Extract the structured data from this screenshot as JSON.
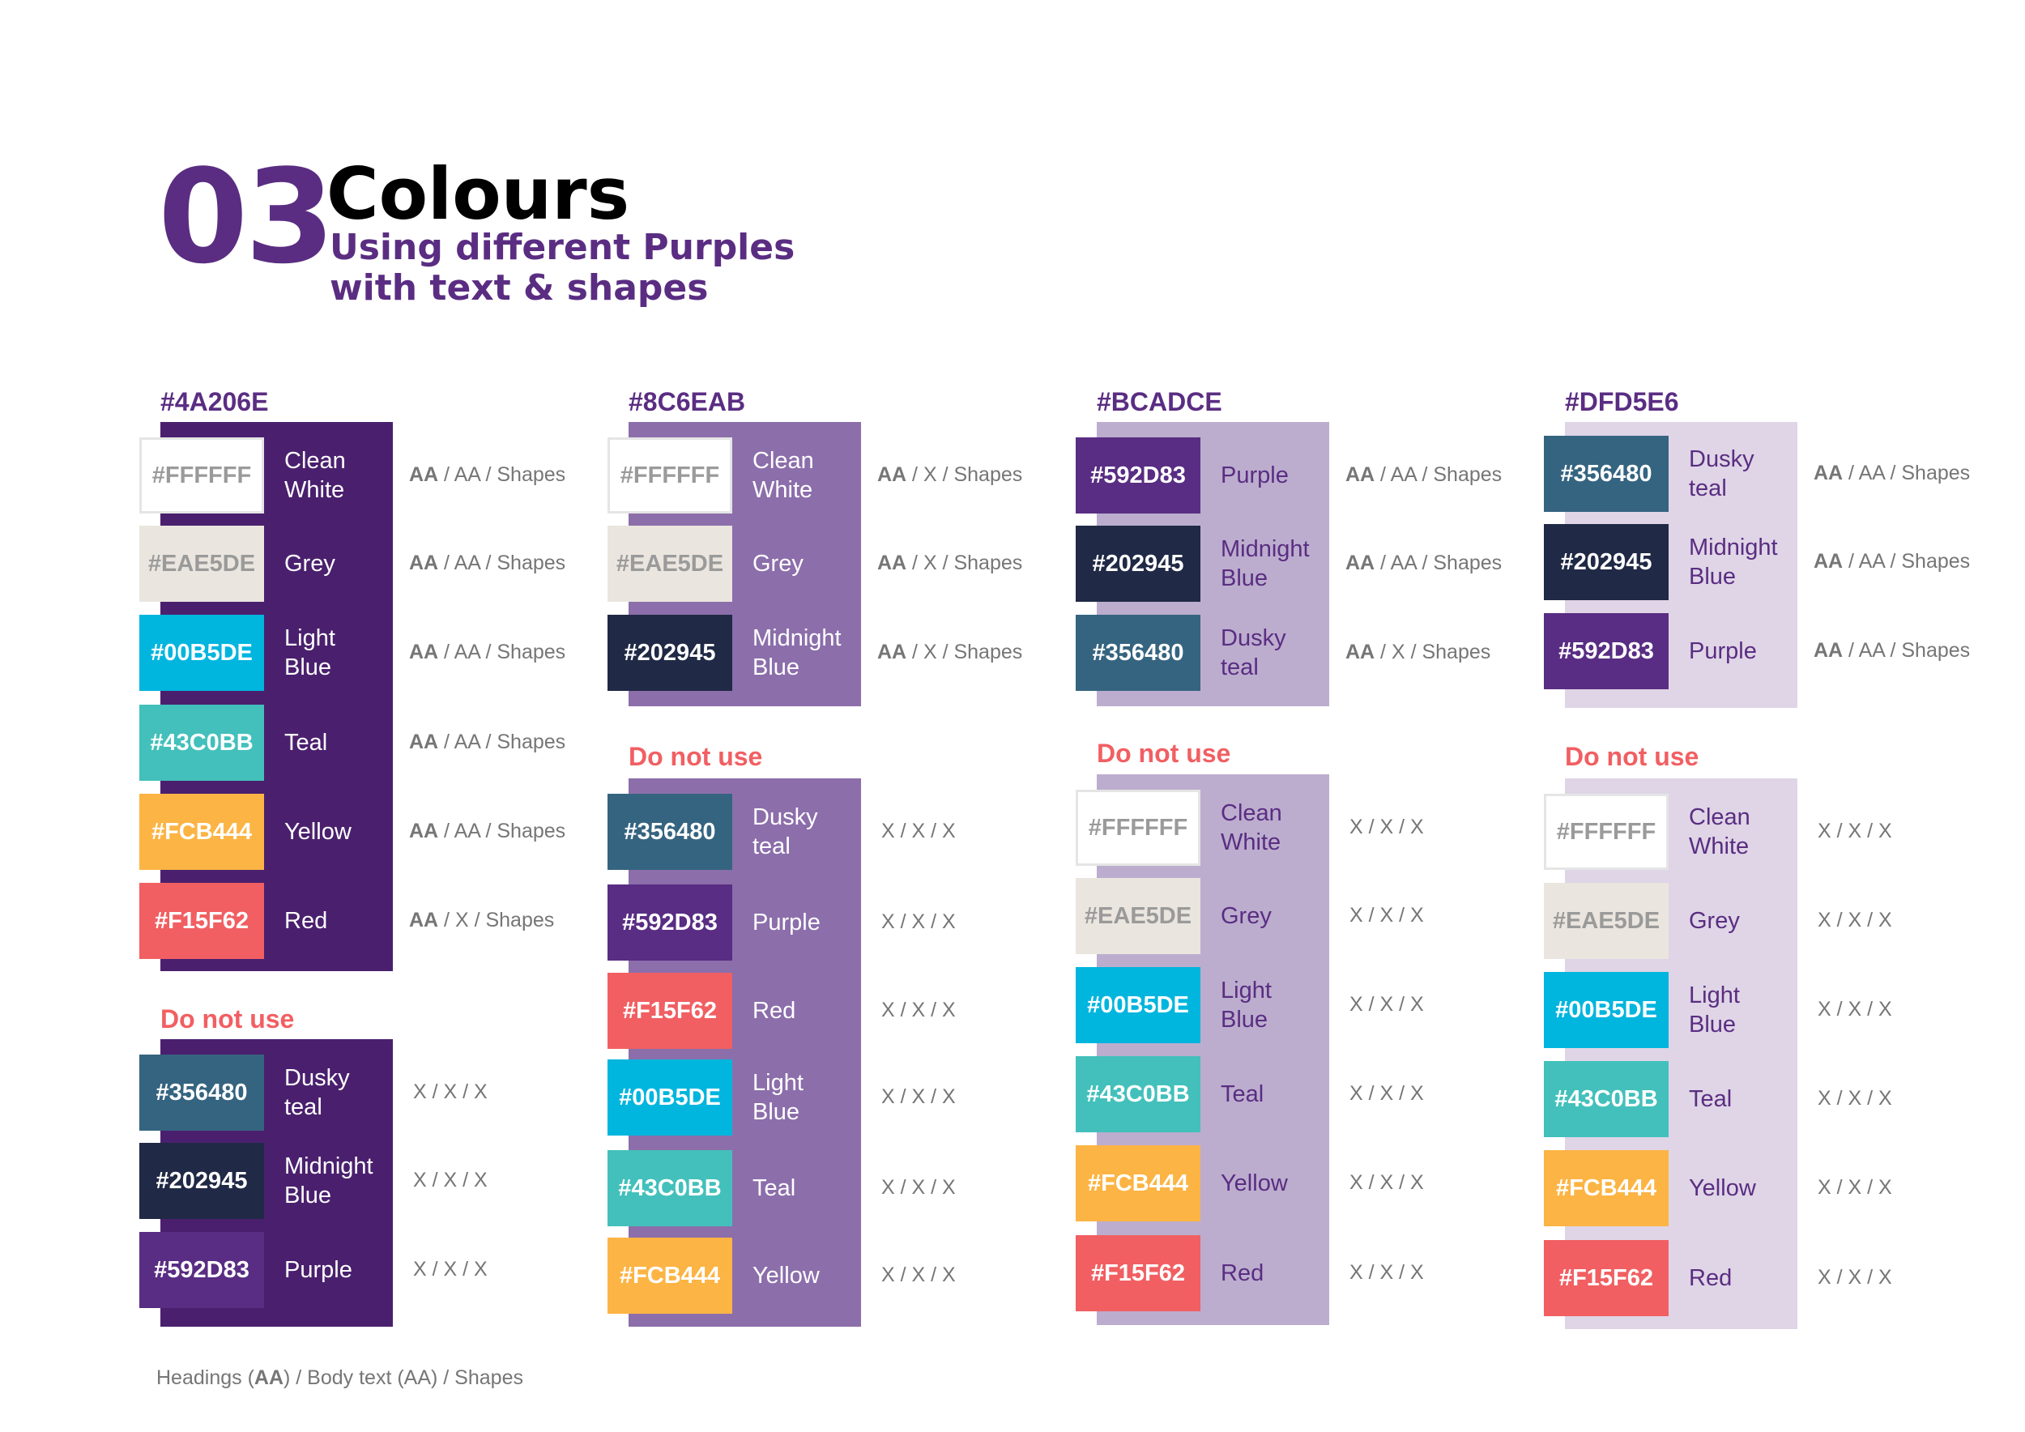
{
  "header": {
    "number": "03",
    "title": "Colours",
    "subtitle_line1": "Using different Purples",
    "subtitle_line2": "with text & shapes"
  },
  "colors": {
    "purple_4a": "#4A206E",
    "purple_8c": "#8C6EAB",
    "purple_bc": "#BCADCE",
    "purple_df": "#DFD5E6",
    "dnu_red": "#F15F62",
    "label_purple": "#592D83"
  },
  "columns": [
    {
      "title": "#4A206E",
      "bg": "#4A206E",
      "name_style": "light",
      "use": [
        {
          "hex": "#FFFFFF",
          "color": "#FFFFFF",
          "name": [
            "Clean",
            "White"
          ],
          "rating": [
            "AA",
            " / AA / Shapes"
          ]
        },
        {
          "hex": "#EAE5DE",
          "color": "#EAE5DE",
          "name": [
            "Grey"
          ],
          "rating": [
            "AA",
            " / AA / Shapes"
          ]
        },
        {
          "hex": "#00B5DE",
          "color": "#00B5DE",
          "name": [
            "Light",
            "Blue"
          ],
          "rating": [
            "AA",
            " / AA / Shapes"
          ]
        },
        {
          "hex": "#43C0BB",
          "color": "#43C0BB",
          "name": [
            "Teal"
          ],
          "rating": [
            "AA",
            " / AA / Shapes"
          ]
        },
        {
          "hex": "#FCB444",
          "color": "#FCB444",
          "name": [
            "Yellow"
          ],
          "rating": [
            "AA",
            " / AA / Shapes"
          ]
        },
        {
          "hex": "#F15F62",
          "color": "#F15F62",
          "name": [
            "Red"
          ],
          "rating": [
            "AA",
            " / X / Shapes"
          ]
        }
      ],
      "dnu_label": "Do not use",
      "dnu": [
        {
          "hex": "#356480",
          "color": "#356480",
          "name": [
            "Dusky",
            "teal"
          ],
          "rating": [
            "",
            "X / X / X"
          ]
        },
        {
          "hex": "#202945",
          "color": "#202945",
          "name": [
            "Midnight",
            "Blue"
          ],
          "rating": [
            "",
            "X / X / X"
          ]
        },
        {
          "hex": "#592D83",
          "color": "#592D83",
          "name": [
            "Purple"
          ],
          "rating": [
            "",
            "X / X / X"
          ]
        }
      ]
    },
    {
      "title": "#8C6EAB",
      "bg": "#8C6EAB",
      "name_style": "light",
      "use": [
        {
          "hex": "#FFFFFF",
          "color": "#FFFFFF",
          "name": [
            "Clean",
            "White"
          ],
          "rating": [
            "AA",
            " / X / Shapes"
          ]
        },
        {
          "hex": "#EAE5DE",
          "color": "#EAE5DE",
          "name": [
            "Grey"
          ],
          "rating": [
            "AA",
            " / X / Shapes"
          ]
        },
        {
          "hex": "#202945",
          "color": "#202945",
          "name": [
            "Midnight",
            "Blue"
          ],
          "rating": [
            "AA",
            " / X / Shapes"
          ]
        }
      ],
      "dnu_label": "Do not use",
      "dnu": [
        {
          "hex": "#356480",
          "color": "#356480",
          "name": [
            "Dusky",
            "teal"
          ],
          "rating": [
            "",
            "X / X / X"
          ]
        },
        {
          "hex": "#592D83",
          "color": "#592D83",
          "name": [
            "Purple"
          ],
          "rating": [
            "",
            "X / X / X"
          ]
        },
        {
          "hex": "#F15F62",
          "color": "#F15F62",
          "name": [
            "Red"
          ],
          "rating": [
            "",
            "X / X / X"
          ]
        },
        {
          "hex": "#00B5DE",
          "color": "#00B5DE",
          "name": [
            "Light",
            "Blue"
          ],
          "rating": [
            "",
            "X / X / X"
          ]
        },
        {
          "hex": "#43C0BB",
          "color": "#43C0BB",
          "name": [
            "Teal"
          ],
          "rating": [
            "",
            "X / X / X"
          ]
        },
        {
          "hex": "#FCB444",
          "color": "#FCB444",
          "name": [
            "Yellow"
          ],
          "rating": [
            "",
            "X / X / X"
          ]
        }
      ]
    },
    {
      "title": "#BCADCE",
      "bg": "#BCADCE",
      "name_style": "dark",
      "use": [
        {
          "hex": "#592D83",
          "color": "#592D83",
          "name": [
            "Purple"
          ],
          "rating": [
            "AA",
            " / AA / Shapes"
          ]
        },
        {
          "hex": "#202945",
          "color": "#202945",
          "name": [
            "Midnight",
            "Blue"
          ],
          "rating": [
            "AA",
            " / AA / Shapes"
          ]
        },
        {
          "hex": "#356480",
          "color": "#356480",
          "name": [
            "Dusky",
            "teal"
          ],
          "rating": [
            "AA",
            " / X / Shapes"
          ]
        }
      ],
      "dnu_label": "Do not use",
      "dnu": [
        {
          "hex": "#FFFFFF",
          "color": "#FFFFFF",
          "name": [
            "Clean",
            "White"
          ],
          "rating": [
            "",
            "X / X / X"
          ]
        },
        {
          "hex": "#EAE5DE",
          "color": "#EAE5DE",
          "name": [
            "Grey"
          ],
          "rating": [
            "",
            "X / X / X"
          ]
        },
        {
          "hex": "#00B5DE",
          "color": "#00B5DE",
          "name": [
            "Light",
            "Blue"
          ],
          "rating": [
            "",
            "X / X / X"
          ]
        },
        {
          "hex": "#43C0BB",
          "color": "#43C0BB",
          "name": [
            "Teal"
          ],
          "rating": [
            "",
            "X / X / X"
          ]
        },
        {
          "hex": "#FCB444",
          "color": "#FCB444",
          "name": [
            "Yellow"
          ],
          "rating": [
            "",
            "X / X / X"
          ]
        },
        {
          "hex": "#F15F62",
          "color": "#F15F62",
          "name": [
            "Red"
          ],
          "rating": [
            "",
            "X / X / X"
          ]
        }
      ]
    },
    {
      "title": "#DFD5E6",
      "bg": "#DFD5E6",
      "name_style": "dark",
      "use": [
        {
          "hex": "#356480",
          "color": "#356480",
          "name": [
            "Dusky",
            "teal"
          ],
          "rating": [
            "AA",
            " / AA / Shapes"
          ]
        },
        {
          "hex": "#202945",
          "color": "#202945",
          "name": [
            "Midnight",
            "Blue"
          ],
          "rating": [
            "AA",
            " / AA / Shapes"
          ]
        },
        {
          "hex": "#592D83",
          "color": "#592D83",
          "name": [
            "Purple"
          ],
          "rating": [
            "AA",
            " / AA / Shapes"
          ]
        }
      ],
      "dnu_label": "Do not use",
      "dnu": [
        {
          "hex": "#FFFFFF",
          "color": "#FFFFFF",
          "name": [
            "Clean",
            "White"
          ],
          "rating": [
            "",
            "X / X / X"
          ]
        },
        {
          "hex": "#EAE5DE",
          "color": "#EAE5DE",
          "name": [
            "Grey"
          ],
          "rating": [
            "",
            "X / X / X"
          ]
        },
        {
          "hex": "#00B5DE",
          "color": "#00B5DE",
          "name": [
            "Light",
            "Blue"
          ],
          "rating": [
            "",
            "X / X / X"
          ]
        },
        {
          "hex": "#43C0BB",
          "color": "#43C0BB",
          "name": [
            "Teal"
          ],
          "rating": [
            "",
            "X / X / X"
          ]
        },
        {
          "hex": "#FCB444",
          "color": "#FCB444",
          "name": [
            "Yellow"
          ],
          "rating": [
            "",
            "X / X / X"
          ]
        },
        {
          "hex": "#F15F62",
          "color": "#F15F62",
          "name": [
            "Red"
          ],
          "rating": [
            "",
            "X / X / X"
          ]
        }
      ]
    }
  ],
  "footnote": {
    "p1": "Headings (",
    "b1": "AA",
    "p2": ") / Body text  (AA) / Shapes"
  }
}
